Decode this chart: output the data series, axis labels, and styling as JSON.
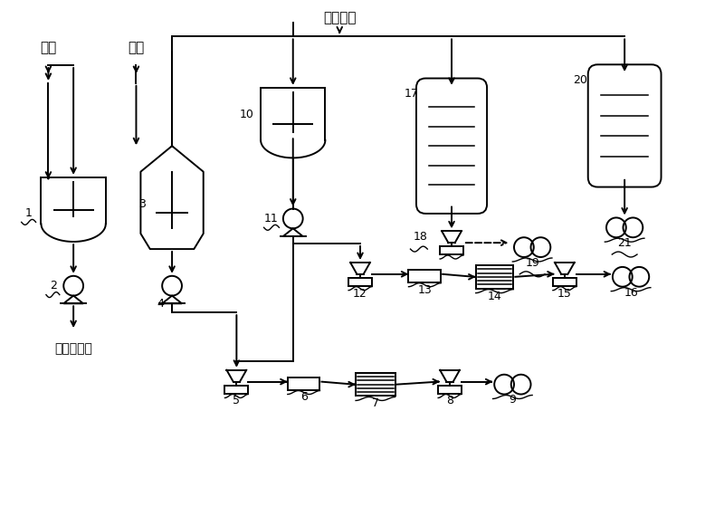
{
  "bg_color": "#ffffff",
  "line_color": "#000000",
  "labels": {
    "chromium_slag": "鍶渣",
    "hydrochloric_acid": "盐酸",
    "barium_hydroxide": "氪氧化钉",
    "further_processing": "另行深加工"
  }
}
